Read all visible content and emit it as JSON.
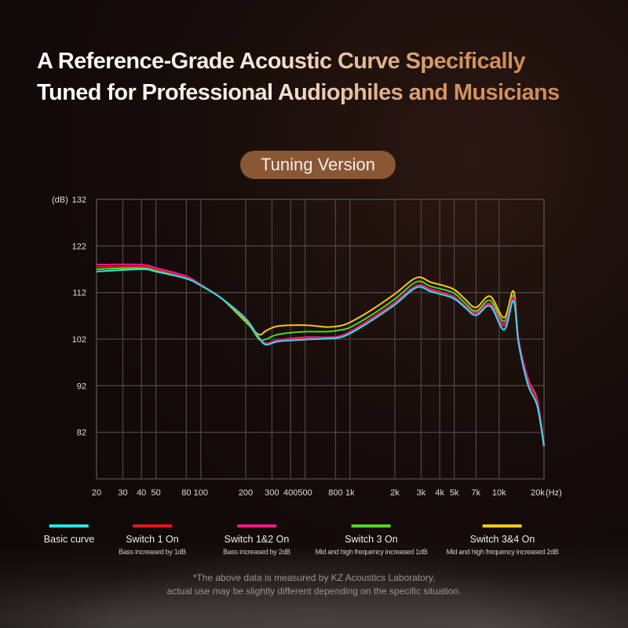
{
  "title": {
    "line1": "A Reference-Grade Acoustic Curve Specifically",
    "line2": "Tuned for Professional Audiophiles and Musicians"
  },
  "badge": "Tuning Version",
  "colors": {
    "background": "#140b08",
    "badge": "#8a5734",
    "grid": "#4a4444"
  },
  "chart_data": {
    "type": "line",
    "ylabel": "(dB)",
    "xunit": "(Hz)",
    "xscale": "log",
    "xlim": [
      20,
      20000
    ],
    "ylim": [
      72,
      132
    ],
    "grid": true,
    "legend": "bottom",
    "y_ticks": [
      132,
      122,
      112,
      102,
      92,
      82
    ],
    "x_ticks": [
      {
        "v": 20,
        "label": "20"
      },
      {
        "v": 30,
        "label": "30"
      },
      {
        "v": 40,
        "label": "40"
      },
      {
        "v": 50,
        "label": "50"
      },
      {
        "v": 80,
        "label": "80"
      },
      {
        "v": 100,
        "label": "100"
      },
      {
        "v": 200,
        "label": "200"
      },
      {
        "v": 300,
        "label": "300"
      },
      {
        "v": 400,
        "label": "400"
      },
      {
        "v": 500,
        "label": "500"
      },
      {
        "v": 800,
        "label": "800"
      },
      {
        "v": 1000,
        "label": "1k"
      },
      {
        "v": 2000,
        "label": "2k"
      },
      {
        "v": 3000,
        "label": "3k"
      },
      {
        "v": 4000,
        "label": "4k"
      },
      {
        "v": 5000,
        "label": "5k"
      },
      {
        "v": 7000,
        "label": "7k"
      },
      {
        "v": 10000,
        "label": "10k"
      },
      {
        "v": 20000,
        "label": "20k"
      }
    ],
    "x": [
      20,
      40,
      50,
      80,
      100,
      137,
      200,
      245,
      274,
      330,
      500,
      700,
      840,
      1000,
      1400,
      2000,
      2800,
      3500,
      4900,
      5900,
      7000,
      8700,
      10800,
      12500,
      13500,
      15600,
      18000,
      20000
    ],
    "series": [
      {
        "name": "Basic curve",
        "desc": "",
        "color": "#2fe0ea",
        "values": [
          116.5,
          117,
          116.5,
          115,
          113.5,
          110.8,
          106.3,
          102.3,
          100.8,
          101.5,
          101.9,
          102.1,
          102.3,
          103.2,
          106,
          109.4,
          113.1,
          112.2,
          110.8,
          108.8,
          107.1,
          109.1,
          104,
          110.2,
          101.2,
          92.2,
          87.7,
          79
        ]
      },
      {
        "name": "Switch 1 On",
        "desc": "Bass increased by 1dB",
        "color": "#e0161c",
        "values": [
          117.5,
          117.6,
          117,
          115.3,
          113.6,
          110.8,
          106.3,
          102.3,
          101,
          101.7,
          102.2,
          102.3,
          102.5,
          103.5,
          106.3,
          109.7,
          113.3,
          112.5,
          111,
          109,
          107.4,
          109.4,
          104.8,
          110.8,
          101.5,
          93,
          88.5,
          79
        ]
      },
      {
        "name": "Switch 1&2 On",
        "desc": "Bass increased by 2dB",
        "color": "#ea1a8c",
        "values": [
          118,
          118,
          117.3,
          115.5,
          113.7,
          110.8,
          106.5,
          102.4,
          101.1,
          101.8,
          102.4,
          102.4,
          102.6,
          103.6,
          106.5,
          109.9,
          113.5,
          112.7,
          111.2,
          109.2,
          107.6,
          109.6,
          105.2,
          111,
          102,
          93.5,
          89,
          79.5
        ]
      },
      {
        "name": "Switch 3 On",
        "desc": "Mid and high frequency increased 1dB",
        "color": "#4fd61c",
        "values": [
          117,
          117.3,
          116.7,
          115.2,
          113.6,
          110.8,
          106,
          102,
          102,
          103,
          103.6,
          103.6,
          103.9,
          104.5,
          107.2,
          110.6,
          114.3,
          113.3,
          112,
          109.8,
          108,
          110.3,
          105.8,
          111.3,
          101.7,
          93,
          88.5,
          79
        ]
      },
      {
        "name": "Switch 3&4 On",
        "desc": "Mid and high frequency increased 2dB",
        "color": "#f5c518",
        "values": [
          117,
          117.3,
          116.7,
          115.2,
          113.6,
          110.8,
          105.7,
          103,
          103.8,
          104.8,
          105,
          104.6,
          104.8,
          105.6,
          108.3,
          111.7,
          115.2,
          114.2,
          112.8,
          110.6,
          108.8,
          111.2,
          106.6,
          112.3,
          101.8,
          93.5,
          89,
          79
        ]
      }
    ]
  },
  "note": {
    "line1": "*The above data is measured by KZ Acoustics Laboratory,",
    "line2": "actual use may be slightly different depending on the specific situation."
  }
}
